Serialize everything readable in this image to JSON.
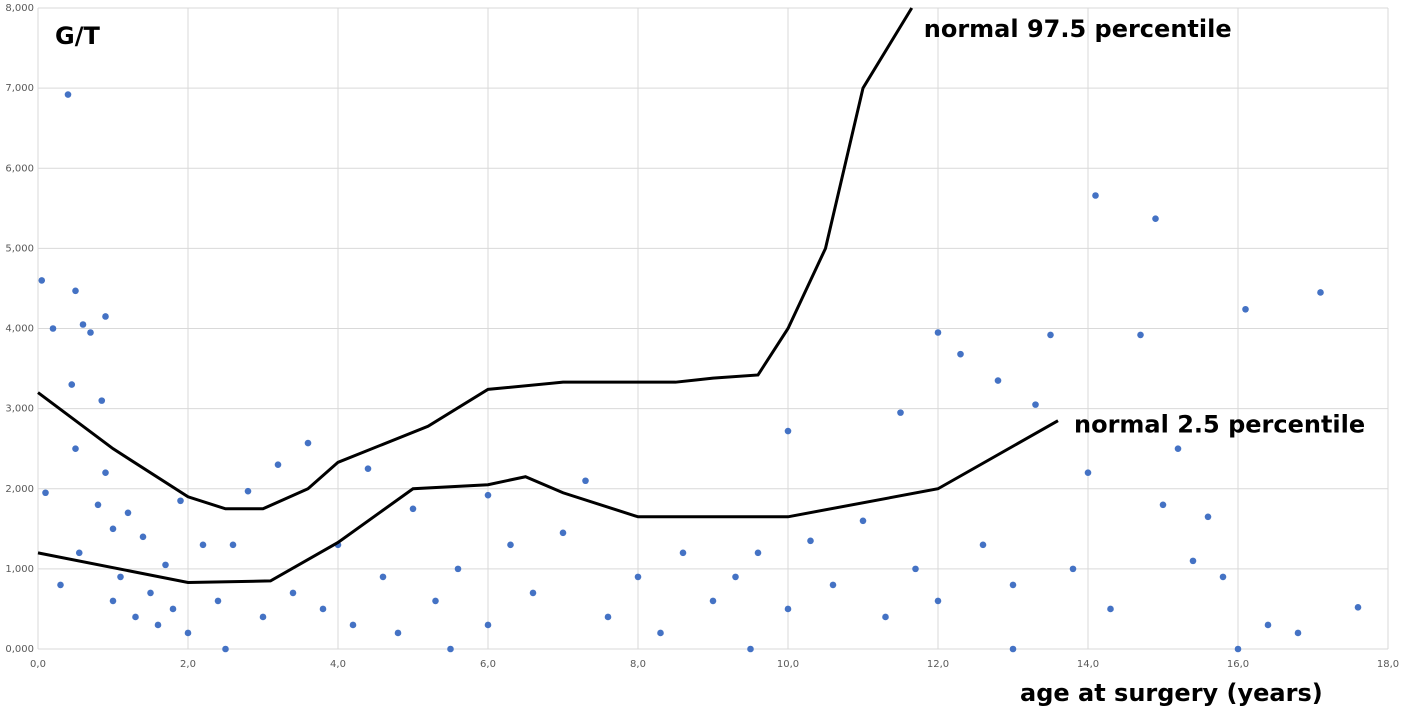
{
  "chart_data": {
    "type": "scatter",
    "y_title": "G/T",
    "x_title": "age at surgery (years)",
    "xlim": [
      0,
      18
    ],
    "ylim": [
      0,
      8
    ],
    "xticks": [
      {
        "value": 0,
        "label": "0,0"
      },
      {
        "value": 2,
        "label": "2,0"
      },
      {
        "value": 4,
        "label": "4,0"
      },
      {
        "value": 6,
        "label": "6,0"
      },
      {
        "value": 8,
        "label": "8,0"
      },
      {
        "value": 10,
        "label": "10,0"
      },
      {
        "value": 12,
        "label": "12,0"
      },
      {
        "value": 14,
        "label": "14,0"
      },
      {
        "value": 16,
        "label": "16,0"
      },
      {
        "value": 18,
        "label": "18,0"
      }
    ],
    "yticks": [
      {
        "value": 0,
        "label": "0,000"
      },
      {
        "value": 1,
        "label": "1,000"
      },
      {
        "value": 2,
        "label": "2,000"
      },
      {
        "value": 3,
        "label": "3,000"
      },
      {
        "value": 4,
        "label": "4,000"
      },
      {
        "value": 5,
        "label": "5,000"
      },
      {
        "value": 6,
        "label": "6,000"
      },
      {
        "value": 7,
        "label": "7,000"
      },
      {
        "value": 8,
        "label": "8,000"
      }
    ],
    "grid": true,
    "scatter": {
      "color": "#4472c4",
      "x": [
        0.05,
        0.1,
        0.2,
        0.3,
        0.4,
        0.45,
        0.5,
        0.5,
        0.55,
        0.6,
        0.7,
        0.8,
        0.85,
        0.9,
        0.9,
        1.0,
        1.0,
        1.1,
        1.2,
        1.3,
        1.4,
        1.5,
        1.6,
        1.7,
        1.8,
        1.9,
        2.0,
        2.2,
        2.4,
        2.6,
        2.8,
        3.0,
        3.2,
        3.4,
        3.6,
        3.8,
        4.0,
        4.2,
        4.4,
        4.6,
        4.8,
        5.0,
        5.3,
        5.6,
        6.0,
        6.0,
        6.3,
        6.6,
        7.0,
        7.3,
        7.6,
        8.0,
        8.3,
        8.6,
        9.0,
        9.3,
        9.6,
        10.0,
        10.0,
        10.3,
        10.6,
        11.0,
        11.3,
        11.5,
        11.7,
        12.0,
        12.0,
        12.3,
        12.6,
        12.8,
        13.0,
        13.3,
        13.5,
        13.8,
        14.0,
        14.1,
        14.3,
        14.7,
        14.9,
        15.0,
        15.2,
        15.4,
        15.6,
        15.8,
        16.1,
        16.4,
        16.8,
        17.1,
        17.6,
        2.5,
        5.5,
        9.5,
        13.0,
        16.0
      ],
      "values": [
        4.6,
        1.95,
        4.0,
        0.8,
        6.92,
        3.3,
        4.47,
        2.5,
        1.2,
        4.05,
        3.95,
        1.8,
        3.1,
        4.15,
        2.2,
        1.5,
        0.6,
        0.9,
        1.7,
        0.4,
        1.4,
        0.7,
        0.3,
        1.05,
        0.5,
        1.85,
        0.2,
        1.3,
        0.6,
        1.3,
        1.97,
        0.4,
        2.3,
        0.7,
        2.57,
        0.5,
        1.3,
        0.3,
        2.25,
        0.9,
        0.2,
        1.75,
        0.6,
        1.0,
        1.92,
        0.3,
        1.3,
        0.7,
        1.45,
        2.1,
        0.4,
        0.9,
        0.2,
        1.2,
        0.6,
        0.9,
        1.2,
        2.72,
        0.5,
        1.35,
        0.8,
        1.6,
        0.4,
        2.95,
        1.0,
        3.95,
        0.6,
        3.68,
        1.3,
        3.35,
        0.8,
        3.05,
        3.92,
        1.0,
        2.2,
        5.66,
        0.5,
        3.92,
        5.37,
        1.8,
        2.5,
        1.1,
        1.65,
        0.9,
        4.24,
        0.3,
        0.2,
        4.45,
        0.52,
        0,
        0,
        0,
        0,
        0
      ]
    },
    "lines": [
      {
        "name": "normal 97.5 percentile",
        "color": "#000000",
        "x": [
          0,
          1,
          2,
          2.5,
          3,
          3.6,
          4,
          5.2,
          6,
          7,
          8.5,
          9,
          9.6,
          10,
          10.5,
          11,
          11.65
        ],
        "values": [
          3.2,
          2.5,
          1.9,
          1.75,
          1.75,
          2.0,
          2.33,
          2.78,
          3.24,
          3.33,
          3.33,
          3.38,
          3.42,
          4.0,
          5.0,
          7.0,
          8.0
        ]
      },
      {
        "name": "normal 2.5 percentile",
        "color": "#000000",
        "x": [
          0,
          2,
          3.1,
          4,
          5,
          6,
          6.5,
          7,
          8,
          10,
          12,
          13.6
        ],
        "values": [
          1.2,
          0.83,
          0.85,
          1.33,
          2.0,
          2.05,
          2.15,
          1.95,
          1.65,
          1.65,
          2.0,
          2.85
        ]
      }
    ]
  }
}
